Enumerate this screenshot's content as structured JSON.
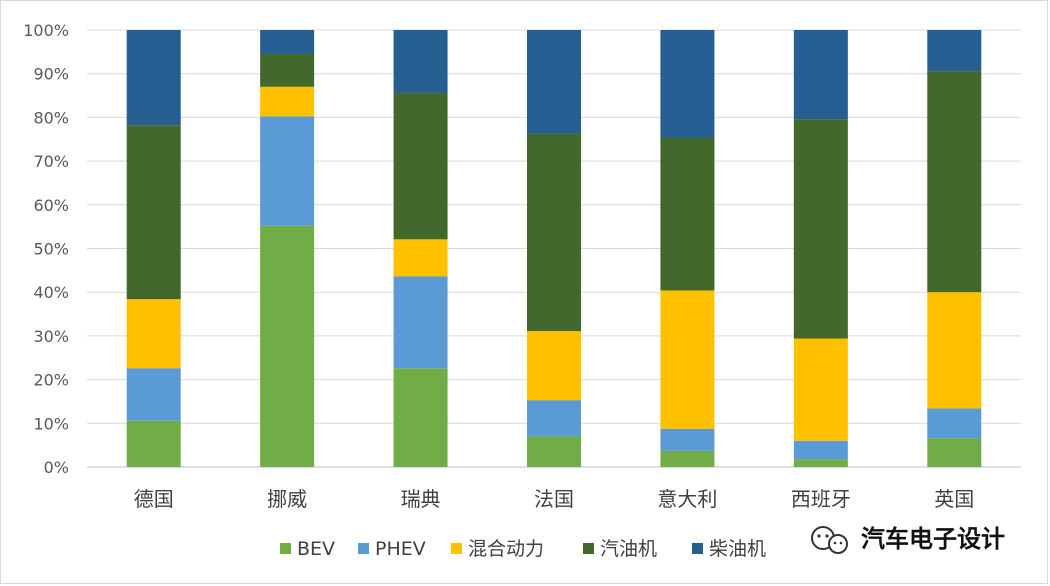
{
  "chart_data": {
    "type": "bar",
    "stacked": true,
    "percent": true,
    "categories": [
      "德国",
      "挪威",
      "瑞典",
      "法国",
      "意大利",
      "西班牙",
      "英国"
    ],
    "series": [
      {
        "name": "BEV",
        "color": "#70ad47",
        "values": [
          10.6,
          55.2,
          22.6,
          7.0,
          3.7,
          1.8,
          6.6
        ]
      },
      {
        "name": "PHEV",
        "color": "#5b9bd5",
        "values": [
          12.0,
          25.0,
          21.0,
          8.3,
          5.0,
          4.2,
          6.8
        ]
      },
      {
        "name": "混合动力",
        "color": "#ffc000",
        "values": [
          15.8,
          6.8,
          8.5,
          15.8,
          31.7,
          23.4,
          26.6
        ]
      },
      {
        "name": "汽油机",
        "color": "#43682b",
        "values": [
          39.8,
          7.5,
          33.5,
          45.2,
          35.0,
          50.2,
          50.6
        ]
      },
      {
        "name": "柴油机",
        "color": "#255e91",
        "values": [
          21.8,
          5.5,
          14.4,
          23.7,
          24.6,
          20.4,
          9.4
        ]
      }
    ],
    "y_ticks": [
      "0%",
      "10%",
      "20%",
      "30%",
      "40%",
      "50%",
      "60%",
      "70%",
      "80%",
      "90%",
      "100%"
    ],
    "ylim": [
      0,
      100
    ],
    "grid": true,
    "legend_position": "bottom"
  },
  "watermark": {
    "text": "汽车电子设计",
    "icon": "wechat-icon"
  }
}
